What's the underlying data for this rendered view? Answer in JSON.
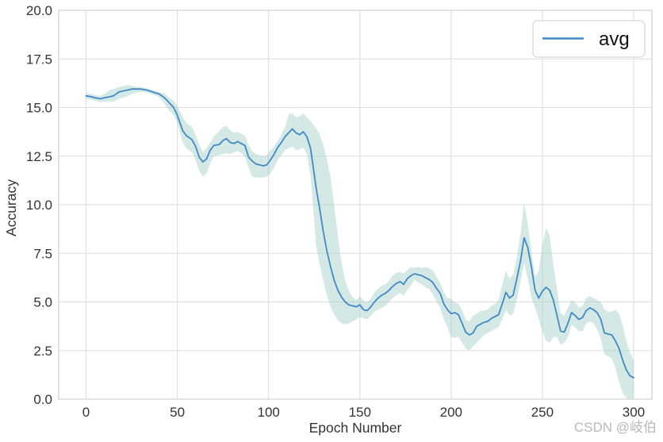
{
  "watermark": "CSDN @岐伯",
  "chart_data": {
    "type": "line",
    "title": "",
    "xlabel": "Epoch Number",
    "ylabel": "Accuracy",
    "xlim": [
      -15,
      310
    ],
    "ylim": [
      0,
      20
    ],
    "xticks": [
      0,
      50,
      100,
      150,
      200,
      250,
      300
    ],
    "xtick_labels": [
      "0",
      "50",
      "100",
      "150",
      "200",
      "250",
      "300"
    ],
    "yticks": [
      0,
      2.5,
      5,
      7.5,
      10,
      12.5,
      15,
      17.5,
      20
    ],
    "ytick_labels": [
      "0.0",
      "2.5",
      "5.0",
      "7.5",
      "10.0",
      "12.5",
      "15.0",
      "17.5",
      "20.0"
    ],
    "grid": true,
    "legend": {
      "position": "upper right",
      "entries": [
        "avg"
      ]
    },
    "colors": {
      "line": "#4189c7",
      "band": "#9fcec7",
      "grid": "#dedede",
      "spine": "#d0d0d0",
      "tick_text": "#333333",
      "watermark": "#b9b9b9",
      "background": "#ffffff"
    },
    "series": [
      {
        "name": "avg",
        "color": "#4189c7",
        "x": [
          0,
          3,
          5,
          8,
          10,
          13,
          15,
          18,
          20,
          23,
          25,
          28,
          30,
          33,
          35,
          38,
          40,
          43,
          45,
          48,
          50,
          53,
          55,
          58,
          60,
          62,
          64,
          66,
          68,
          70,
          73,
          75,
          77,
          79,
          81,
          83,
          85,
          87,
          89,
          91,
          93,
          95,
          97,
          99,
          101,
          103,
          105,
          107,
          109,
          111,
          113,
          115,
          117,
          119,
          121,
          123,
          126,
          128,
          130,
          132,
          134,
          136,
          138,
          140,
          142,
          144,
          146,
          148,
          150,
          152,
          154,
          156,
          158,
          160,
          162,
          164,
          166,
          168,
          170,
          172,
          174,
          176,
          178,
          180,
          182,
          184,
          186,
          188,
          190,
          192,
          194,
          196,
          198,
          200,
          202,
          204,
          206,
          208,
          210,
          212,
          214,
          216,
          218,
          220,
          222,
          224,
          226,
          228,
          230,
          232,
          234,
          236,
          238,
          240,
          242,
          244,
          246,
          248,
          250,
          252,
          254,
          256,
          258,
          260,
          262,
          264,
          266,
          268,
          270,
          272,
          274,
          276,
          278,
          280,
          282,
          284,
          286,
          288,
          290,
          292,
          294,
          296,
          298,
          300
        ],
        "y": [
          15.6,
          15.55,
          15.5,
          15.45,
          15.5,
          15.55,
          15.6,
          15.8,
          15.85,
          15.9,
          15.95,
          15.95,
          15.95,
          15.9,
          15.85,
          15.75,
          15.7,
          15.5,
          15.3,
          15.0,
          14.6,
          13.8,
          13.55,
          13.35,
          13.0,
          12.45,
          12.2,
          12.35,
          12.8,
          13.05,
          13.1,
          13.3,
          13.4,
          13.2,
          13.15,
          13.25,
          13.15,
          13.05,
          12.45,
          12.25,
          12.1,
          12.05,
          12.0,
          12.05,
          12.3,
          12.6,
          12.95,
          13.2,
          13.5,
          13.7,
          13.9,
          13.7,
          13.6,
          13.75,
          13.5,
          12.9,
          10.9,
          9.8,
          8.6,
          7.6,
          6.8,
          6.1,
          5.6,
          5.25,
          5.0,
          4.85,
          4.8,
          4.75,
          4.85,
          4.6,
          4.55,
          4.75,
          5.0,
          5.2,
          5.35,
          5.45,
          5.6,
          5.8,
          5.95,
          6.05,
          5.9,
          6.2,
          6.35,
          6.45,
          6.4,
          6.35,
          6.25,
          6.15,
          6.0,
          5.7,
          5.45,
          4.9,
          4.6,
          4.4,
          4.45,
          4.35,
          3.9,
          3.45,
          3.3,
          3.4,
          3.75,
          3.85,
          3.95,
          4.0,
          4.15,
          4.25,
          4.35,
          4.9,
          5.5,
          5.2,
          5.35,
          6.2,
          7.1,
          8.3,
          7.8,
          6.8,
          5.6,
          5.2,
          5.55,
          5.75,
          5.6,
          5.1,
          4.3,
          3.5,
          3.45,
          3.9,
          4.45,
          4.3,
          4.1,
          4.2,
          4.55,
          4.7,
          4.6,
          4.45,
          4.1,
          3.4,
          3.35,
          3.3,
          3.0,
          2.6,
          2.0,
          1.5,
          1.2,
          1.1
        ],
        "band": {
          "color": "#9fcec7",
          "opacity": 0.45,
          "upper": [
            15.75,
            15.7,
            15.65,
            15.6,
            15.7,
            15.9,
            15.95,
            16.05,
            16.1,
            16.15,
            16.1,
            16.05,
            16.05,
            16.0,
            15.95,
            15.85,
            15.8,
            15.72,
            15.55,
            15.35,
            15.1,
            14.5,
            14.2,
            14.0,
            13.6,
            13.1,
            12.7,
            12.9,
            13.2,
            13.5,
            13.8,
            14.0,
            14.05,
            13.85,
            13.7,
            13.75,
            13.65,
            13.55,
            13.1,
            12.75,
            12.6,
            12.55,
            12.5,
            12.55,
            12.8,
            13.0,
            13.3,
            13.6,
            14.0,
            14.65,
            14.7,
            14.5,
            14.55,
            14.7,
            14.5,
            14.3,
            13.95,
            13.6,
            13.1,
            12.3,
            11.4,
            9.9,
            8.4,
            7.0,
            6.1,
            5.6,
            5.25,
            5.1,
            5.3,
            5.05,
            5.0,
            5.15,
            5.5,
            5.7,
            5.85,
            5.9,
            6.1,
            6.35,
            6.5,
            6.55,
            6.45,
            6.65,
            6.8,
            6.75,
            6.8,
            6.75,
            6.8,
            6.75,
            6.6,
            6.3,
            6.0,
            5.5,
            5.2,
            5.15,
            5.0,
            4.9,
            4.6,
            4.1,
            4.0,
            4.3,
            4.4,
            4.55,
            4.55,
            4.6,
            4.8,
            4.9,
            5.1,
            5.9,
            6.6,
            6.2,
            6.4,
            7.3,
            8.5,
            10.1,
            9.0,
            7.6,
            6.3,
            6.6,
            7.9,
            8.8,
            8.4,
            6.9,
            5.7,
            4.4,
            4.3,
            4.7,
            5.1,
            5.0,
            4.7,
            4.8,
            5.2,
            5.3,
            5.2,
            5.1,
            5.0,
            4.6,
            4.5,
            4.5,
            4.6,
            4.4,
            3.8,
            3.0,
            2.4,
            2.0
          ],
          "lower": [
            15.45,
            15.4,
            15.35,
            15.28,
            15.3,
            15.3,
            15.3,
            15.45,
            15.5,
            15.6,
            15.7,
            15.78,
            15.8,
            15.78,
            15.72,
            15.62,
            15.55,
            15.18,
            14.9,
            14.6,
            14.2,
            13.2,
            12.9,
            12.7,
            12.3,
            11.75,
            11.45,
            11.6,
            12.1,
            12.5,
            12.55,
            12.6,
            12.65,
            12.6,
            12.7,
            12.75,
            12.65,
            12.45,
            11.9,
            11.45,
            11.4,
            11.4,
            11.4,
            11.45,
            11.6,
            11.9,
            12.3,
            12.55,
            12.8,
            12.9,
            13.0,
            12.8,
            12.85,
            12.95,
            12.6,
            11.5,
            7.9,
            6.9,
            6.1,
            5.3,
            4.75,
            4.35,
            4.05,
            3.9,
            3.85,
            3.9,
            4.0,
            4.1,
            4.25,
            4.15,
            4.1,
            4.3,
            4.5,
            4.6,
            4.7,
            4.8,
            5.0,
            5.2,
            5.35,
            5.45,
            5.3,
            5.6,
            5.85,
            6.15,
            6.0,
            5.9,
            5.75,
            5.65,
            5.4,
            5.0,
            4.7,
            4.1,
            3.7,
            3.2,
            3.15,
            3.2,
            2.9,
            2.6,
            2.5,
            2.7,
            2.9,
            3.1,
            3.3,
            3.4,
            3.5,
            3.6,
            3.7,
            4.1,
            4.6,
            4.3,
            4.4,
            5.1,
            6.0,
            7.0,
            6.2,
            5.2,
            4.7,
            4.1,
            3.5,
            3.0,
            2.9,
            3.2,
            3.2,
            2.8,
            2.9,
            3.2,
            3.8,
            3.7,
            3.5,
            3.5,
            3.9,
            4.0,
            3.9,
            3.6,
            3.1,
            2.3,
            2.2,
            2.1,
            1.6,
            0.9,
            0.3,
            0.05,
            0.0,
            0.05
          ]
        }
      }
    ]
  }
}
